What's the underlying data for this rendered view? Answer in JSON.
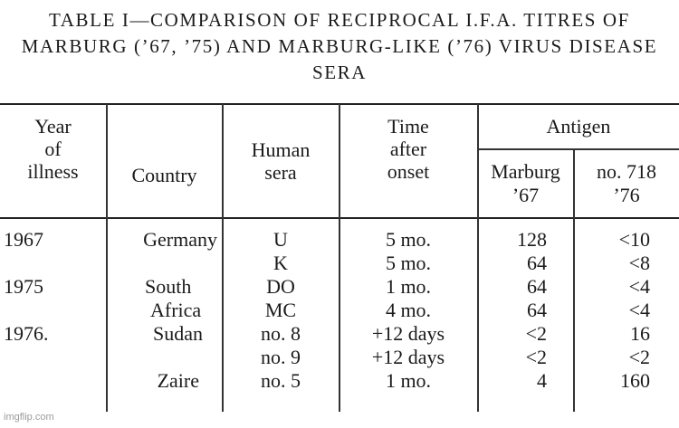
{
  "title": {
    "line1": "TABLE I—COMPARISON OF RECIPROCAL I.F.A. TITRES OF",
    "line2": "MARBURG (’67, ’75) AND MARBURG-LIKE (’76) VIRUS DISEASE",
    "line3": "SERA"
  },
  "headers": {
    "year": [
      "Year",
      "of",
      "illness"
    ],
    "country": "Country",
    "sera": [
      "Human",
      "sera"
    ],
    "time": [
      "Time",
      "after",
      "onset"
    ],
    "antigen": "Antigen",
    "marburg": [
      "Marburg",
      "’67"
    ],
    "no718": [
      "no. 718",
      "’76"
    ]
  },
  "rows": [
    {
      "year": "1967",
      "country": "Germany",
      "sera": "U",
      "time": "5 mo.",
      "marburg": "128",
      "no718": "<10"
    },
    {
      "year": "",
      "country": "",
      "sera": "K",
      "time": "5 mo.",
      "marburg": "64",
      "no718": "<8"
    },
    {
      "year": "1975",
      "country": "South",
      "sera": "DO",
      "time": "1 mo.",
      "marburg": "64",
      "no718": "<4"
    },
    {
      "year": "",
      "country": "Africa",
      "sera": "MC",
      "time": "4 mo.",
      "marburg": "64",
      "no718": "<4"
    },
    {
      "year": "1976.",
      "country": "Sudan",
      "sera": "no. 8",
      "time": "+12 days",
      "marburg": "<2",
      "no718": "16"
    },
    {
      "year": "",
      "country": "",
      "sera": "no. 9",
      "time": "+12 days",
      "marburg": "<2",
      "no718": "<2"
    },
    {
      "year": "",
      "country": "Zaire",
      "sera": "no. 5",
      "time": "1 mo.",
      "marburg": "4",
      "no718": "160"
    }
  ],
  "watermark": "imgflip.com"
}
